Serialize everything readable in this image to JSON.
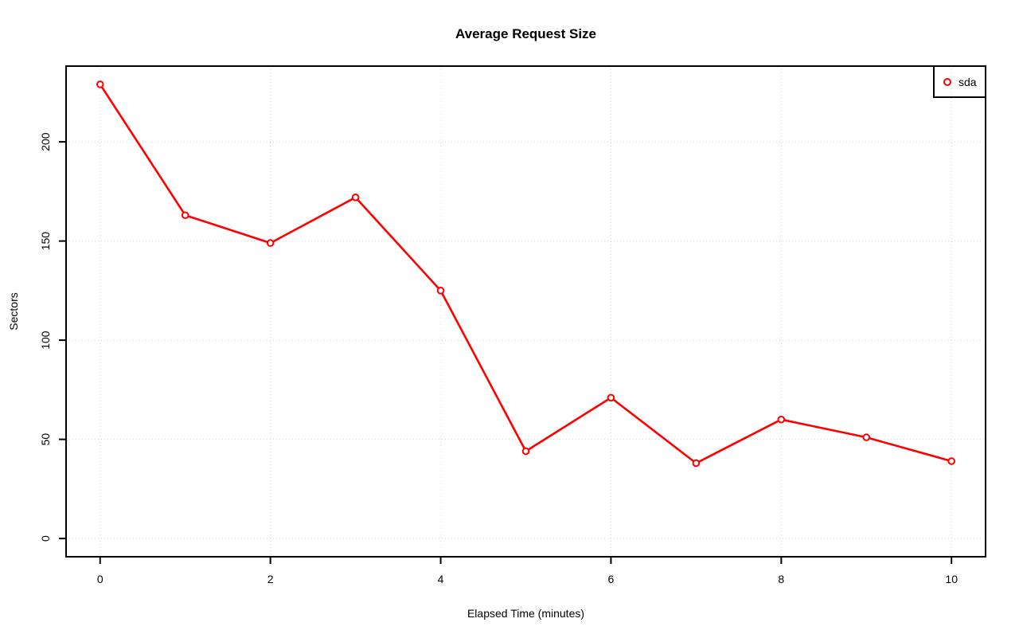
{
  "page": {
    "background": "#ffffff"
  },
  "chart_data": {
    "type": "line",
    "title": "Average Request Size",
    "xlabel": "Elapsed Time (minutes)",
    "ylabel": "Sectors",
    "x": [
      0,
      1,
      2,
      3,
      4,
      5,
      6,
      7,
      8,
      9,
      10
    ],
    "series": [
      {
        "name": "sda",
        "color": "#FF0000",
        "marker": "open-circle",
        "values": [
          229,
          163,
          149,
          172,
          125,
          44,
          71,
          38,
          60,
          51,
          39
        ]
      }
    ],
    "xticks": [
      0,
      2,
      4,
      6,
      8,
      10
    ],
    "yticks": [
      0,
      50,
      100,
      150,
      200
    ],
    "xlim": [
      -0.4,
      10.4
    ],
    "ylim": [
      -9.2,
      238.2
    ],
    "grid": true,
    "grid_style": "dotted",
    "grid_color": "#D3D3D3",
    "axis_color": "#000000",
    "legend": {
      "position": "top-right",
      "items": [
        {
          "label": "sda",
          "color": "#FF0000",
          "marker": "open-circle"
        }
      ]
    }
  }
}
